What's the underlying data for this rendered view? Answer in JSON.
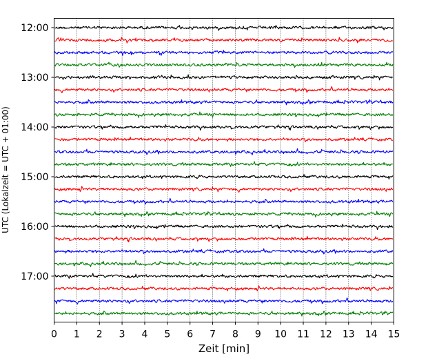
{
  "chart_data": {
    "type": "line",
    "title": "",
    "xlabel": "Zeit  [min]",
    "ylabel": "UTC (Lokalzeit = UTC + 01:00)",
    "xlim": [
      0,
      15
    ],
    "x_ticks": [
      "0",
      "1",
      "2",
      "3",
      "4",
      "5",
      "6",
      "7",
      "8",
      "9",
      "10",
      "11",
      "12",
      "13",
      "14",
      "15"
    ],
    "y_ticks": [
      "12:00",
      "13:00",
      "14:00",
      "15:00",
      "16:00",
      "17:00"
    ],
    "grid": "vertical dotted",
    "trace_interval_min": 15,
    "trace_colors": [
      "#000000",
      "#ff0000",
      "#0000ff",
      "#008000"
    ],
    "traces": [
      {
        "time": "12:00",
        "color": "#000000"
      },
      {
        "time": "12:15",
        "color": "#ff0000"
      },
      {
        "time": "12:30",
        "color": "#0000ff"
      },
      {
        "time": "12:45",
        "color": "#008000"
      },
      {
        "time": "13:00",
        "color": "#000000"
      },
      {
        "time": "13:15",
        "color": "#ff0000"
      },
      {
        "time": "13:30",
        "color": "#0000ff"
      },
      {
        "time": "13:45",
        "color": "#008000"
      },
      {
        "time": "14:00",
        "color": "#000000"
      },
      {
        "time": "14:15",
        "color": "#ff0000"
      },
      {
        "time": "14:30",
        "color": "#0000ff"
      },
      {
        "time": "14:45",
        "color": "#008000"
      },
      {
        "time": "15:00",
        "color": "#000000"
      },
      {
        "time": "15:15",
        "color": "#ff0000"
      },
      {
        "time": "15:30",
        "color": "#0000ff"
      },
      {
        "time": "15:45",
        "color": "#008000"
      },
      {
        "time": "16:00",
        "color": "#000000"
      },
      {
        "time": "16:15",
        "color": "#ff0000"
      },
      {
        "time": "16:30",
        "color": "#0000ff"
      },
      {
        "time": "16:45",
        "color": "#008000"
      },
      {
        "time": "17:00",
        "color": "#000000"
      },
      {
        "time": "17:15",
        "color": "#ff0000"
      },
      {
        "time": "17:30",
        "color": "#0000ff"
      },
      {
        "time": "17:45",
        "color": "#008000"
      }
    ]
  }
}
